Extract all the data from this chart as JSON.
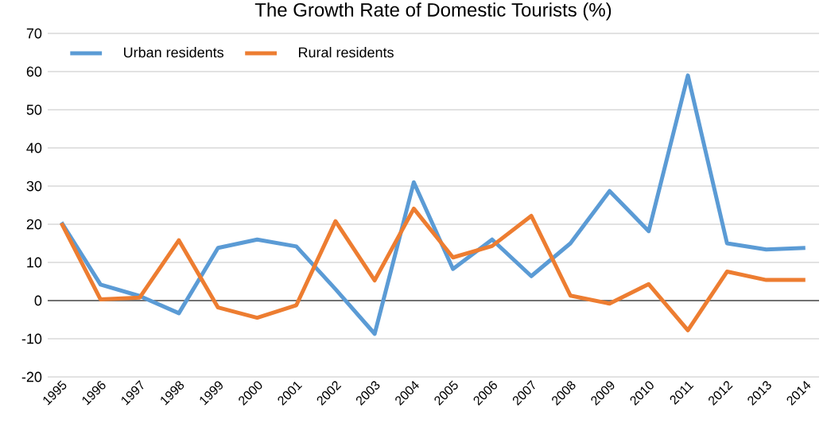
{
  "chart_data": {
    "type": "line",
    "title": "The Growth Rate of Domestic Tourists (%)",
    "categories": [
      "1995",
      "1996",
      "1997",
      "1998",
      "1999",
      "2000",
      "2001",
      "2002",
      "2003",
      "2004",
      "2005",
      "2006",
      "2007",
      "2008",
      "2009",
      "2010",
      "2011",
      "2012",
      "2013",
      "2014"
    ],
    "series": [
      {
        "name": "Urban residents",
        "color": "#5b9bd5",
        "values": [
          20.5,
          4.2,
          1.2,
          -3.3,
          13.8,
          16,
          14.2,
          3,
          -8.7,
          31,
          8.3,
          16,
          6.4,
          15,
          28.7,
          18.2,
          59,
          15,
          13.4,
          13.8
        ]
      },
      {
        "name": "Rural residents",
        "color": "#ed7d31",
        "values": [
          20.3,
          0.3,
          0.8,
          15.8,
          -1.8,
          -4.5,
          -1.2,
          20.8,
          5.3,
          24.1,
          11.3,
          14.3,
          22.2,
          1.3,
          -0.8,
          4.3,
          -7.8,
          7.6,
          5.4,
          5.4
        ]
      }
    ],
    "ylim": [
      -20,
      70
    ],
    "yticks": [
      -20,
      -10,
      0,
      10,
      20,
      30,
      40,
      50,
      60,
      70
    ],
    "grid": "y",
    "legend": "top left",
    "marker": "none",
    "line_style": "solid"
  }
}
